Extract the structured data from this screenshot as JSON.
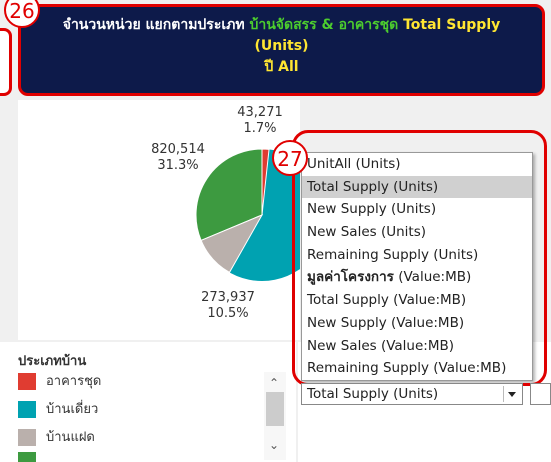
{
  "badges": [
    "26",
    "27"
  ],
  "header": {
    "title_prefix": "จำนวนหน่วย แยกตามประเภท ",
    "title_highlight": "บ้านจัดสรร & อาคารชุด",
    "title_measure": " Total Supply",
    "title_unit": "(Units)",
    "year": "ปี All"
  },
  "pie": {
    "slices": [
      {
        "value": "43,271",
        "percent": 1.7,
        "percent_label": "1.7%",
        "color": "#e03c31"
      },
      {
        "value": "820,514",
        "percent": 31.3,
        "percent_label": "31.3%",
        "color": "#3d9a40"
      },
      {
        "value": "273,937",
        "percent": 10.5,
        "percent_label": "10.5%",
        "color": "#bab0ac"
      }
    ]
  },
  "legend": {
    "title": "ประเภทบ้าน",
    "items": [
      {
        "label": "อาคารชุด",
        "color": "#e03c31"
      },
      {
        "label": "บ้านเดี่ยว",
        "color": "#00a2b1"
      },
      {
        "label": "บ้านแฝด",
        "color": "#bab0ac"
      }
    ]
  },
  "dropdown": {
    "options": [
      "UnitAll (Units)",
      "Total Supply (Units)",
      "New Supply (Units)",
      "New Sales (Units)",
      "Remaining Supply (Units)",
      {
        "bold": "มูลค่าโครงการ",
        "text": " (Value:MB)"
      },
      "Total Supply (Value:MB)",
      "New Supply (Value:MB)",
      "New Sales (Value:MB)",
      "Remaining Supply (Value:MB)"
    ],
    "selected": 1,
    "value": "Total Supply (Units)"
  }
}
